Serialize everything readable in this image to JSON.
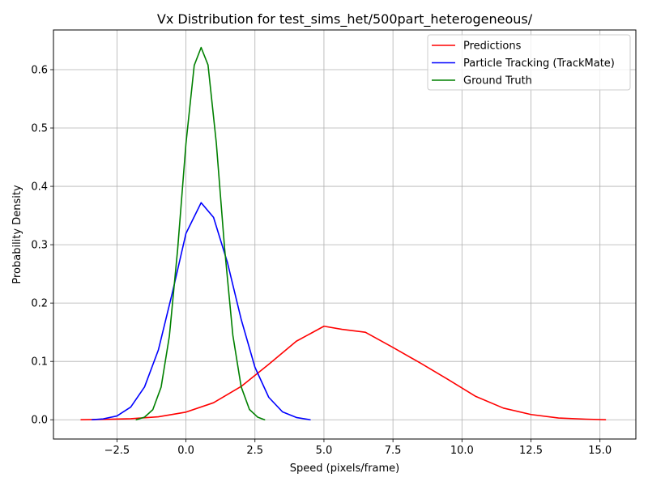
{
  "chart_data": {
    "type": "line",
    "title": "Vx Distribution for test_sims_het/500part_heterogeneous/",
    "xlabel": "Speed (pixels/frame)",
    "ylabel": "Probability Density",
    "xlim": [
      -4.8,
      16.3
    ],
    "ylim": [
      -0.033,
      0.668
    ],
    "x_ticks": [
      -2.5,
      0.0,
      2.5,
      5.0,
      7.5,
      10.0,
      12.5,
      15.0
    ],
    "x_tick_labels": [
      "−2.5",
      "0.0",
      "2.5",
      "5.0",
      "7.5",
      "10.0",
      "12.5",
      "15.0"
    ],
    "y_ticks": [
      0.0,
      0.1,
      0.2,
      0.3,
      0.4,
      0.5,
      0.6
    ],
    "y_tick_labels": [
      "0.0",
      "0.1",
      "0.2",
      "0.3",
      "0.4",
      "0.5",
      "0.6"
    ],
    "grid": true,
    "legend_position": "top-right",
    "series": [
      {
        "name": "Predictions",
        "color": "#ff0000",
        "x": [
          -3.8,
          -3.0,
          -2.0,
          -1.0,
          0.0,
          1.0,
          2.0,
          3.0,
          4.0,
          5.0,
          5.65,
          6.5,
          7.5,
          8.5,
          9.5,
          10.5,
          11.5,
          12.5,
          13.5,
          14.5,
          15.2
        ],
        "y": [
          0.0,
          0.0006,
          0.0018,
          0.0051,
          0.0131,
          0.0292,
          0.0571,
          0.0951,
          0.1346,
          0.1603,
          0.155,
          0.15,
          0.124,
          0.097,
          0.069,
          0.04,
          0.02,
          0.009,
          0.003,
          0.001,
          0.0
        ]
      },
      {
        "name": "Particle Tracking (TrackMate)",
        "color": "#0000ff",
        "x": [
          -3.4,
          -3.0,
          -2.5,
          -2.0,
          -1.5,
          -1.0,
          -0.5,
          0.0,
          0.55,
          1.0,
          1.5,
          2.0,
          2.5,
          3.0,
          3.5,
          4.0,
          4.5
        ],
        "y": [
          0.0,
          0.0015,
          0.0065,
          0.0218,
          0.0563,
          0.1195,
          0.2163,
          0.3192,
          0.372,
          0.3468,
          0.27,
          0.1723,
          0.09,
          0.0385,
          0.0135,
          0.0039,
          0.0
        ]
      },
      {
        "name": "Ground Truth",
        "color": "#008000",
        "x": [
          -1.8,
          -1.5,
          -1.2,
          -0.9,
          -0.6,
          -0.3,
          0.0,
          0.3,
          0.55,
          0.8,
          1.1,
          1.4,
          1.7,
          2.0,
          2.3,
          2.6,
          2.85
        ],
        "y": [
          0.0,
          0.0045,
          0.0173,
          0.0559,
          0.1434,
          0.2925,
          0.4731,
          0.6074,
          0.638,
          0.6081,
          0.4745,
          0.294,
          0.1447,
          0.0566,
          0.0177,
          0.0044,
          0.0
        ]
      }
    ]
  }
}
